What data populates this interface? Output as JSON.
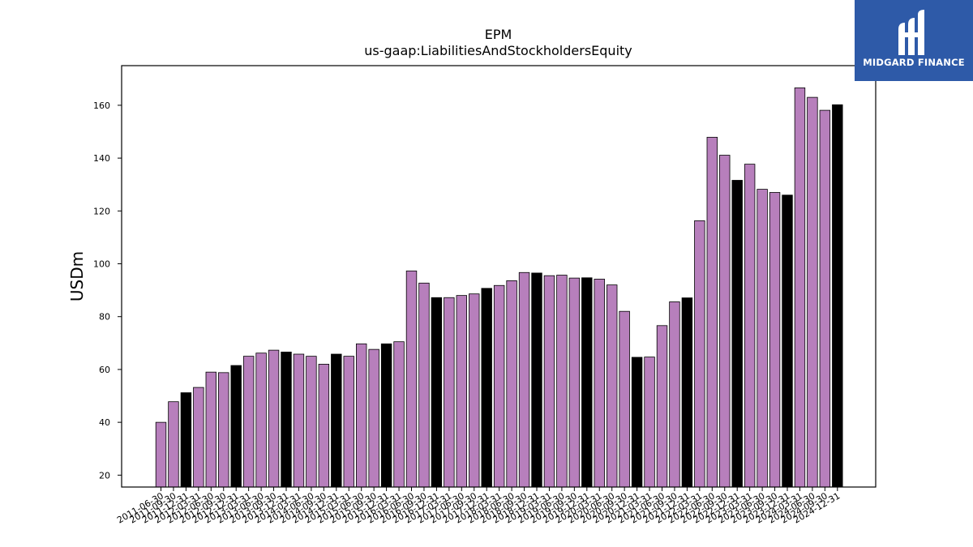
{
  "chart_data": {
    "type": "bar",
    "title": "EPM",
    "subtitle": "us-gaap:LiabilitiesAndStockholdersEquity",
    "xlabel": "",
    "ylabel": "USDm",
    "ylim": [
      15.5,
      175
    ],
    "yticks": [
      20,
      40,
      60,
      80,
      100,
      120,
      140,
      160
    ],
    "grid": false,
    "colors": {
      "quarterly": "#b77fbc",
      "annual": "#000000"
    },
    "categories": [
      "2011-06-30",
      "2011-09-30",
      "2011-12-31",
      "2012-03-31",
      "2012-06-30",
      "2012-09-30",
      "2012-12-31",
      "2013-03-31",
      "2013-06-30",
      "2013-09-30",
      "2013-12-31",
      "2014-03-31",
      "2014-06-30",
      "2014-09-30",
      "2014-12-31",
      "2015-03-31",
      "2015-06-30",
      "2015-09-30",
      "2015-12-31",
      "2016-03-31",
      "2016-06-30",
      "2016-09-30",
      "2016-12-31",
      "2017-03-31",
      "2017-06-30",
      "2017-09-30",
      "2017-12-31",
      "2018-03-31",
      "2018-06-30",
      "2018-09-30",
      "2018-12-31",
      "2019-03-31",
      "2019-06-30",
      "2019-09-30",
      "2019-12-31",
      "2020-03-31",
      "2020-06-30",
      "2020-09-30",
      "2020-12-31",
      "2021-03-31",
      "2021-06-30",
      "2021-09-30",
      "2021-12-31",
      "2022-03-31",
      "2022-06-30",
      "2022-09-30",
      "2022-12-31",
      "2023-03-31",
      "2023-06-30",
      "2023-09-30",
      "2023-12-31",
      "2024-03-31",
      "2024-06-30",
      "2024-09-30",
      "2024-12-31"
    ],
    "tick_labels": [
      "2011-06-30",
      "2011-09-30",
      "2011-12-31",
      "2012-03-31",
      "2012-06-30",
      "2012-09-30",
      "2012-12-31",
      "2013-03-31",
      "2013-06-30",
      "2013-09-30",
      "2013-12-31",
      "2014-03-31",
      "2014-06-30",
      "2014-09-30",
      "2014-12-31",
      "2015-03-31",
      "2015-06-30",
      "2015-09-30",
      "2015-12-31",
      "2016-03-31",
      "2016-06-30",
      "2016-09-30",
      "2016-12-31",
      "2017-03-31",
      "2017-06-30",
      "2017-09-30",
      "2017-12-31",
      "2018-03-31",
      "2018-06-30",
      "2018-09-30",
      "2018-12-31",
      "2019-03-31",
      "2019-06-30",
      "2019-09-30",
      "2019-12-31",
      "2020-03-31",
      "2020-06-30",
      "2020-09-30",
      "2020-12-31",
      "2021-03-31",
      "2021-06-30",
      "2021-09-30",
      "2021-12-31",
      "2022-03-31",
      "2022-06-30",
      "2022-09-30",
      "2022-12-31",
      "2023-03-31",
      "2023-06-30",
      "2023-09-30",
      "2023-12-31",
      "2024-03-31",
      "2024-06-30",
      "2024-09-30",
      "2024-12-31"
    ],
    "values": [
      40,
      47.8,
      51.2,
      53.2,
      59,
      58.8,
      61.5,
      65,
      66.2,
      67.3,
      66.6,
      65.8,
      65,
      62,
      65.8,
      65,
      69.7,
      67.6,
      69.7,
      70.5,
      97.3,
      92.7,
      87.2,
      87.2,
      88,
      88.6,
      90.7,
      91.8,
      93.6,
      96.7,
      96.5,
      95.5,
      95.7,
      94.6,
      94.7,
      94.2,
      92,
      82,
      64.6,
      64.7,
      76.6,
      85.6,
      87.1,
      116.3,
      147.9,
      141.1,
      131.6,
      137.7,
      128.2,
      127,
      126,
      166.6,
      163,
      158.1,
      160.2
    ],
    "annual_flags": [
      false,
      false,
      true,
      false,
      false,
      false,
      true,
      false,
      false,
      false,
      true,
      false,
      false,
      false,
      true,
      false,
      false,
      false,
      true,
      false,
      false,
      false,
      true,
      false,
      false,
      false,
      true,
      false,
      false,
      false,
      true,
      false,
      false,
      false,
      true,
      false,
      false,
      false,
      true,
      false,
      false,
      false,
      true,
      false,
      false,
      false,
      true,
      false,
      false,
      false,
      true,
      false,
      false,
      false,
      true
    ]
  },
  "logo": {
    "name": "MIDGARD FINANCE",
    "icon": "midgard-logo-icon"
  }
}
